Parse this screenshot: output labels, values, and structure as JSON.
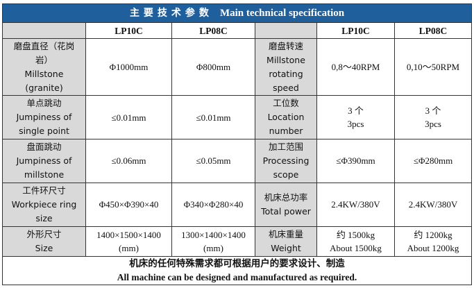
{
  "title": {
    "cn": "主要技术参数",
    "en": "Main technical specification"
  },
  "header": {
    "col1": "LP10C",
    "col2": "LP08C",
    "col3": "LP10C",
    "col4": "LP08C"
  },
  "rows": [
    {
      "left_label": [
        "磨盘直径（花岗",
        "岩）",
        "Millstone",
        "(granite)"
      ],
      "left_v1": [
        "Φ1000mm"
      ],
      "left_v2": [
        "Φ800mm"
      ],
      "right_label": [
        "磨盘转速",
        "Millstone",
        "rotating",
        "speed"
      ],
      "right_v1": [
        "0,8～40RPM"
      ],
      "right_v2": [
        "0,10～50RPM"
      ]
    },
    {
      "left_label": [
        "单点跳动",
        "Jumpiness of",
        "single point"
      ],
      "left_v1": [
        "≤0.01mm"
      ],
      "left_v2": [
        "≤0.01mm"
      ],
      "right_label": [
        "工位数",
        "Location",
        "number"
      ],
      "right_v1": [
        "3 个",
        "3pcs"
      ],
      "right_v2": [
        "3 个",
        "3pcs"
      ]
    },
    {
      "left_label": [
        "盘面跳动",
        "Jumpiness of",
        "millstone"
      ],
      "left_v1": [
        "≤0.06mm"
      ],
      "left_v2": [
        "≤0.05mm"
      ],
      "right_label": [
        "加工范围",
        "Processing",
        "scope"
      ],
      "right_v1": [
        "≤Φ390mm"
      ],
      "right_v2": [
        "≤Φ280mm"
      ]
    },
    {
      "left_label": [
        "工件环尺寸",
        "Workpiece ring",
        "size"
      ],
      "left_v1": [
        "Φ450×Φ390×40"
      ],
      "left_v2": [
        "Φ340×Φ280×40"
      ],
      "right_label": [
        "机床总功率",
        "Total power"
      ],
      "right_v1": [
        "2.4KW/380V"
      ],
      "right_v2": [
        "2.4KW/380V"
      ]
    },
    {
      "left_label": [
        "外形尺寸",
        "Size"
      ],
      "left_v1": [
        "1400×1500×1400",
        "(mm)"
      ],
      "left_v2": [
        "1300×1400×1400",
        "(mm)"
      ],
      "right_label": [
        "机床重量",
        "Weight"
      ],
      "right_v1": [
        "约 1500kg",
        "About 1500kg"
      ],
      "right_v2": [
        "约 1200kg",
        "About 1200kg"
      ]
    }
  ],
  "footer": {
    "cn": "机床的任何特殊需求都可根据用户的要求设计、制造",
    "en": "All machine can be designed and manufactured as required."
  }
}
